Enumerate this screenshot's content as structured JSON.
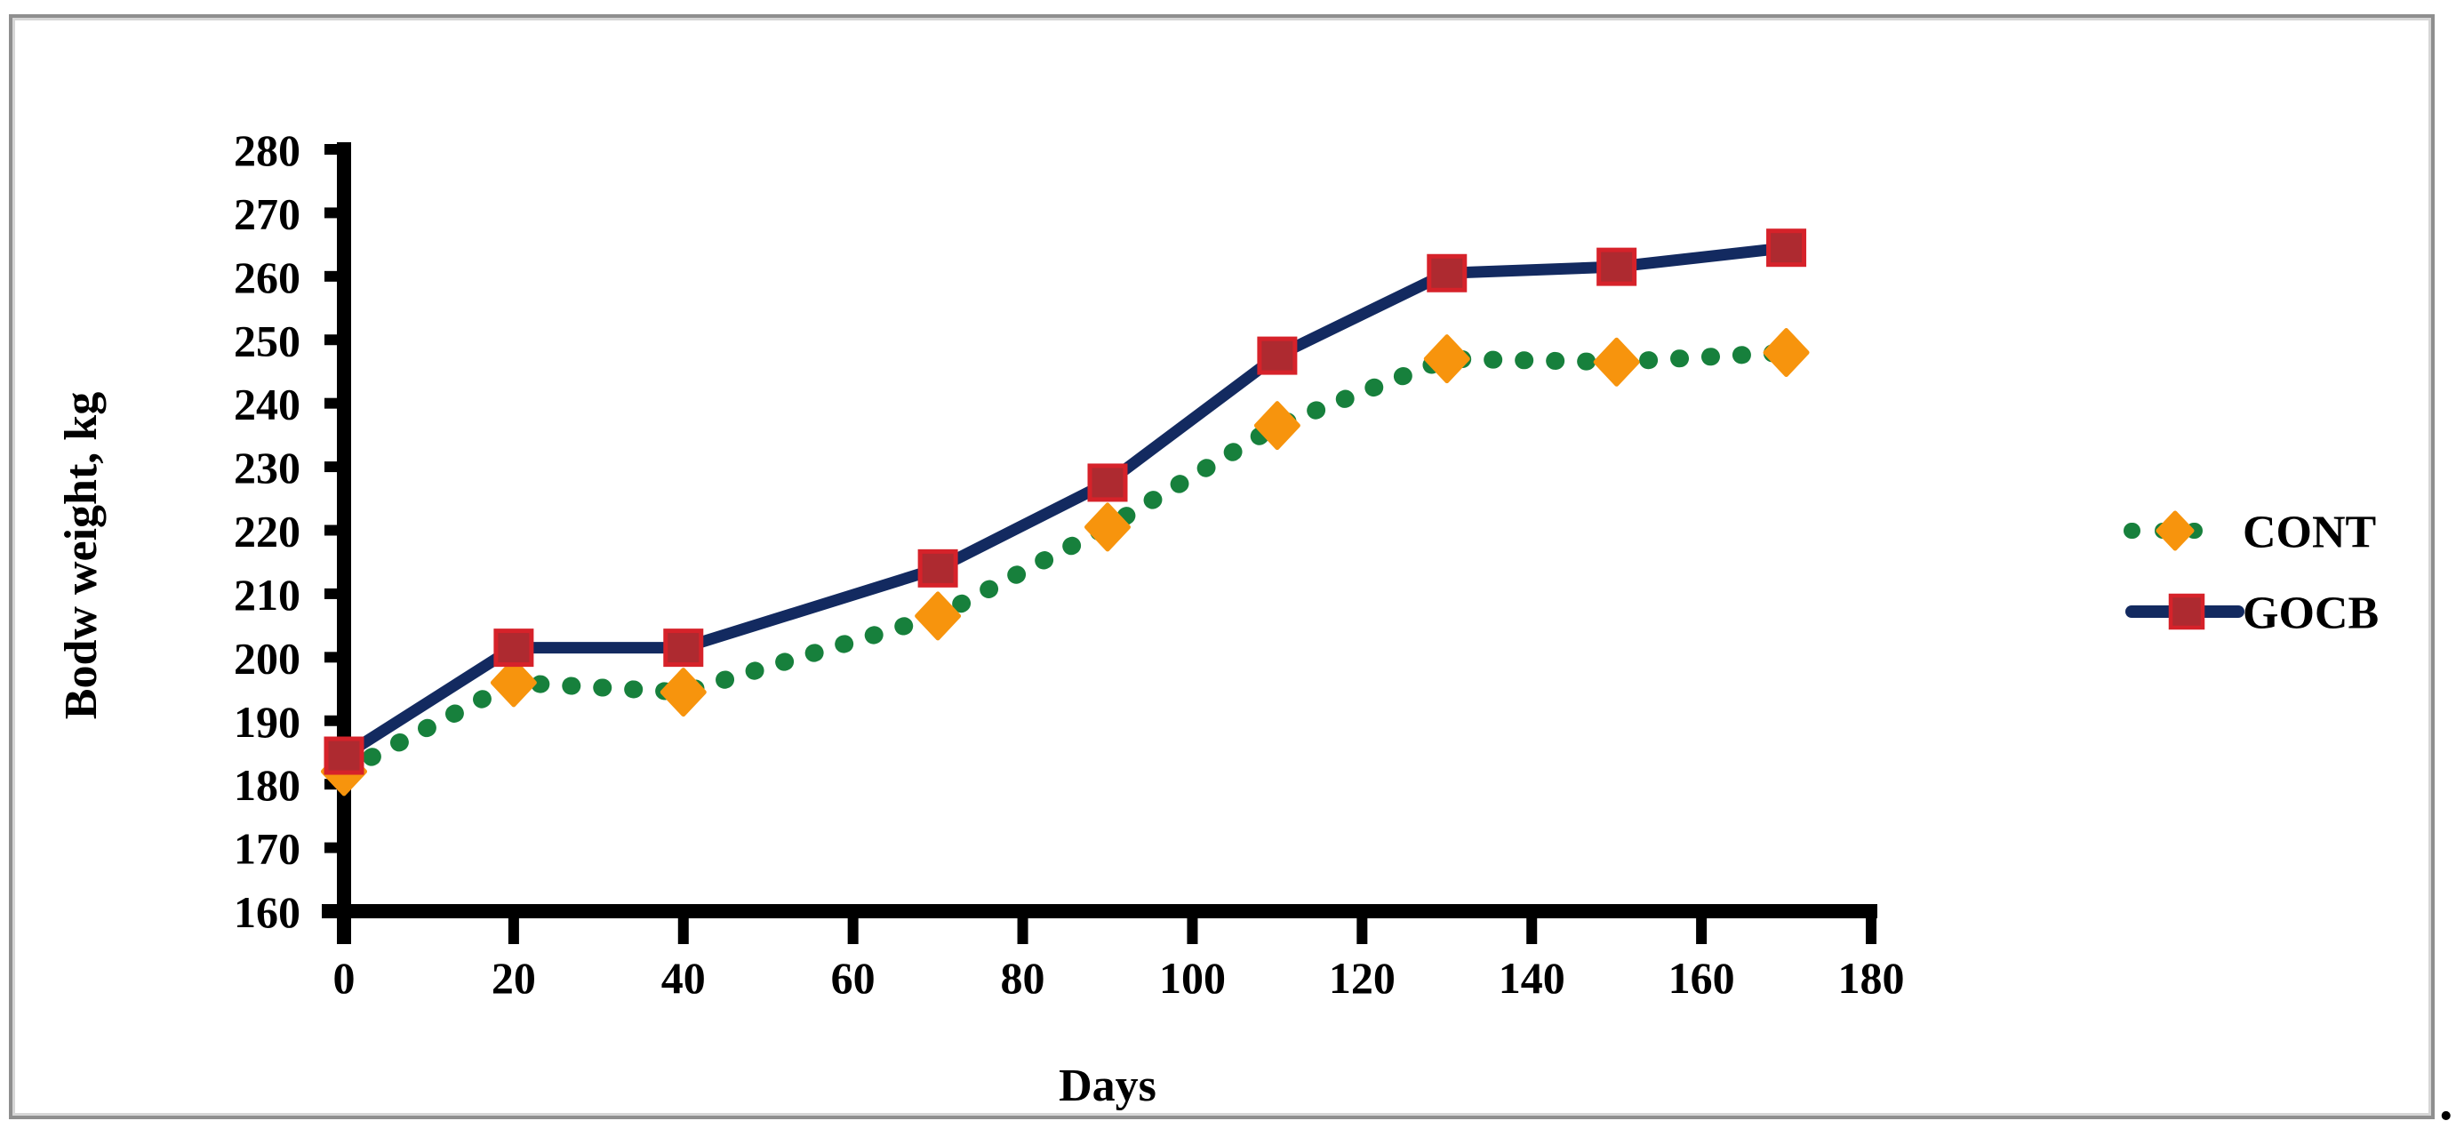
{
  "figure": {
    "trailing_text": "."
  },
  "chart_data": {
    "type": "line",
    "title": "",
    "xlabel": "Days",
    "ylabel": "Bodw weight, kg",
    "x": [
      0,
      20,
      40,
      70,
      90,
      110,
      130,
      150,
      170
    ],
    "series": [
      {
        "name": "CONT",
        "values": [
          182,
          196,
          194.5,
          206.5,
          220.5,
          236.5,
          247,
          246.5,
          248
        ],
        "line_color": "#17803C",
        "line_style": "dotted",
        "marker": "diamond",
        "marker_color": "#F7940D",
        "marker_border_color": "#F7940D"
      },
      {
        "name": "GOCB",
        "values": [
          184.5,
          201.5,
          201.5,
          214,
          227.5,
          247.5,
          260.5,
          261.5,
          264.5
        ],
        "line_color": "#132A60",
        "line_style": "solid",
        "marker": "square",
        "marker_color": "#AE2A30",
        "marker_border_color": "#D6222A"
      }
    ],
    "xlim": [
      0,
      180
    ],
    "ylim": [
      160,
      280
    ],
    "x_ticks": [
      0,
      20,
      40,
      60,
      80,
      100,
      120,
      140,
      160,
      180
    ],
    "y_ticks": [
      160,
      170,
      180,
      190,
      200,
      210,
      220,
      230,
      240,
      250,
      260,
      270,
      280
    ],
    "grid": false,
    "axis_color": "#000000",
    "legend_position": "right-middle"
  }
}
